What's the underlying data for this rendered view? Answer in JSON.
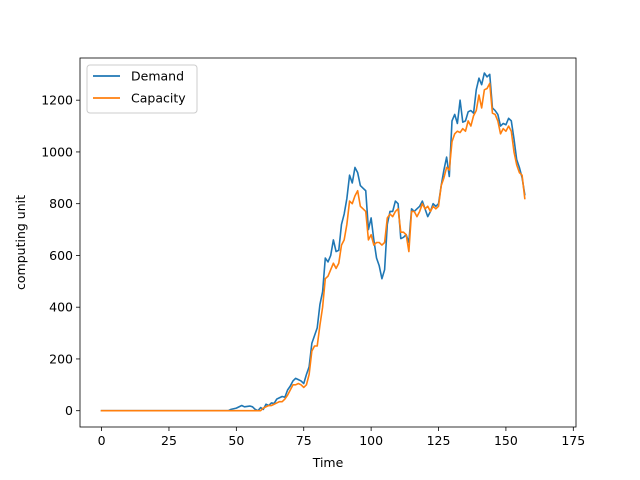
{
  "chart_data": {
    "type": "line",
    "title": "",
    "xlabel": "Time",
    "ylabel": "computing unit",
    "xlim": [
      -8,
      176
    ],
    "ylim": [
      -63,
      1363
    ],
    "x_ticks": [
      0,
      25,
      50,
      75,
      100,
      125,
      150,
      175
    ],
    "y_ticks": [
      0,
      200,
      400,
      600,
      800,
      1000,
      1200
    ],
    "grid": false,
    "legend_position": "upper left",
    "series": [
      {
        "name": "Demand",
        "color": "#1f77b4",
        "points": [
          [
            0,
            0
          ],
          [
            47,
            0
          ],
          [
            48,
            5
          ],
          [
            50,
            10
          ],
          [
            52,
            20
          ],
          [
            53,
            15
          ],
          [
            55,
            18
          ],
          [
            56,
            15
          ],
          [
            57,
            5
          ],
          [
            58,
            0
          ],
          [
            59,
            12
          ],
          [
            60,
            5
          ],
          [
            61,
            25
          ],
          [
            62,
            20
          ],
          [
            63,
            30
          ],
          [
            64,
            28
          ],
          [
            65,
            45
          ],
          [
            66,
            50
          ],
          [
            67,
            55
          ],
          [
            68,
            52
          ],
          [
            69,
            80
          ],
          [
            70,
            95
          ],
          [
            71,
            115
          ],
          [
            72,
            125
          ],
          [
            73,
            120
          ],
          [
            74,
            115
          ],
          [
            75,
            105
          ],
          [
            76,
            140
          ],
          [
            77,
            170
          ],
          [
            78,
            260
          ],
          [
            79,
            290
          ],
          [
            80,
            320
          ],
          [
            81,
            410
          ],
          [
            82,
            460
          ],
          [
            83,
            590
          ],
          [
            84,
            575
          ],
          [
            85,
            600
          ],
          [
            86,
            660
          ],
          [
            87,
            615
          ],
          [
            88,
            620
          ],
          [
            89,
            720
          ],
          [
            90,
            760
          ],
          [
            91,
            820
          ],
          [
            92,
            910
          ],
          [
            93,
            880
          ],
          [
            94,
            940
          ],
          [
            95,
            920
          ],
          [
            96,
            870
          ],
          [
            97,
            860
          ],
          [
            98,
            850
          ],
          [
            99,
            700
          ],
          [
            100,
            745
          ],
          [
            101,
            660
          ],
          [
            102,
            590
          ],
          [
            103,
            560
          ],
          [
            104,
            510
          ],
          [
            105,
            545
          ],
          [
            106,
            720
          ],
          [
            107,
            770
          ],
          [
            108,
            770
          ],
          [
            109,
            810
          ],
          [
            110,
            800
          ],
          [
            111,
            665
          ],
          [
            112,
            670
          ],
          [
            113,
            680
          ],
          [
            114,
            650
          ],
          [
            115,
            780
          ],
          [
            116,
            770
          ],
          [
            117,
            780
          ],
          [
            118,
            790
          ],
          [
            119,
            810
          ],
          [
            120,
            780
          ],
          [
            121,
            750
          ],
          [
            122,
            770
          ],
          [
            123,
            800
          ],
          [
            124,
            790
          ],
          [
            125,
            800
          ],
          [
            126,
            870
          ],
          [
            127,
            930
          ],
          [
            128,
            980
          ],
          [
            129,
            905
          ],
          [
            130,
            1120
          ],
          [
            131,
            1145
          ],
          [
            132,
            1110
          ],
          [
            133,
            1200
          ],
          [
            134,
            1115
          ],
          [
            135,
            1120
          ],
          [
            136,
            1155
          ],
          [
            137,
            1160
          ],
          [
            138,
            1150
          ],
          [
            139,
            1240
          ],
          [
            140,
            1285
          ],
          [
            141,
            1260
          ],
          [
            142,
            1305
          ],
          [
            143,
            1290
          ],
          [
            144,
            1300
          ],
          [
            145,
            1170
          ],
          [
            146,
            1160
          ],
          [
            147,
            1145
          ],
          [
            148,
            1100
          ],
          [
            149,
            1110
          ],
          [
            150,
            1105
          ],
          [
            151,
            1130
          ],
          [
            152,
            1120
          ],
          [
            153,
            1050
          ],
          [
            154,
            970
          ],
          [
            155,
            940
          ],
          [
            156,
            900
          ],
          [
            157,
            835
          ]
        ]
      },
      {
        "name": "Capacity",
        "color": "#ff7f0e",
        "points": [
          [
            0,
            0
          ],
          [
            47,
            0
          ],
          [
            48,
            0
          ],
          [
            50,
            0
          ],
          [
            52,
            0
          ],
          [
            55,
            0
          ],
          [
            58,
            0
          ],
          [
            59,
            0
          ],
          [
            60,
            10
          ],
          [
            61,
            15
          ],
          [
            62,
            20
          ],
          [
            63,
            20
          ],
          [
            64,
            25
          ],
          [
            65,
            30
          ],
          [
            66,
            35
          ],
          [
            67,
            35
          ],
          [
            68,
            45
          ],
          [
            69,
            60
          ],
          [
            70,
            80
          ],
          [
            71,
            100
          ],
          [
            72,
            100
          ],
          [
            73,
            105
          ],
          [
            74,
            100
          ],
          [
            75,
            90
          ],
          [
            76,
            100
          ],
          [
            77,
            140
          ],
          [
            78,
            230
          ],
          [
            79,
            250
          ],
          [
            80,
            250
          ],
          [
            81,
            330
          ],
          [
            82,
            400
          ],
          [
            83,
            510
          ],
          [
            84,
            520
          ],
          [
            85,
            545
          ],
          [
            86,
            570
          ],
          [
            87,
            550
          ],
          [
            88,
            570
          ],
          [
            89,
            640
          ],
          [
            90,
            660
          ],
          [
            91,
            720
          ],
          [
            92,
            810
          ],
          [
            93,
            800
          ],
          [
            94,
            830
          ],
          [
            95,
            850
          ],
          [
            96,
            790
          ],
          [
            97,
            780
          ],
          [
            98,
            770
          ],
          [
            99,
            660
          ],
          [
            100,
            680
          ],
          [
            101,
            640
          ],
          [
            102,
            650
          ],
          [
            103,
            650
          ],
          [
            104,
            640
          ],
          [
            105,
            650
          ],
          [
            106,
            745
          ],
          [
            107,
            760
          ],
          [
            108,
            750
          ],
          [
            109,
            770
          ],
          [
            110,
            780
          ],
          [
            111,
            690
          ],
          [
            112,
            690
          ],
          [
            113,
            680
          ],
          [
            114,
            615
          ],
          [
            115,
            770
          ],
          [
            116,
            770
          ],
          [
            117,
            750
          ],
          [
            118,
            770
          ],
          [
            119,
            800
          ],
          [
            120,
            780
          ],
          [
            121,
            790
          ],
          [
            122,
            770
          ],
          [
            123,
            790
          ],
          [
            124,
            780
          ],
          [
            125,
            790
          ],
          [
            126,
            870
          ],
          [
            127,
            900
          ],
          [
            128,
            940
          ],
          [
            129,
            930
          ],
          [
            130,
            1040
          ],
          [
            131,
            1070
          ],
          [
            132,
            1080
          ],
          [
            133,
            1075
          ],
          [
            134,
            1090
          ],
          [
            135,
            1080
          ],
          [
            136,
            1120
          ],
          [
            137,
            1100
          ],
          [
            138,
            1140
          ],
          [
            139,
            1160
          ],
          [
            140,
            1220
          ],
          [
            141,
            1170
          ],
          [
            142,
            1240
          ],
          [
            143,
            1245
          ],
          [
            144,
            1265
          ],
          [
            145,
            1150
          ],
          [
            146,
            1145
          ],
          [
            147,
            1120
          ],
          [
            148,
            1070
          ],
          [
            149,
            1090
          ],
          [
            150,
            1080
          ],
          [
            151,
            1100
          ],
          [
            152,
            1080
          ],
          [
            153,
            1000
          ],
          [
            154,
            950
          ],
          [
            155,
            920
          ],
          [
            156,
            910
          ],
          [
            157,
            820
          ]
        ]
      }
    ]
  }
}
